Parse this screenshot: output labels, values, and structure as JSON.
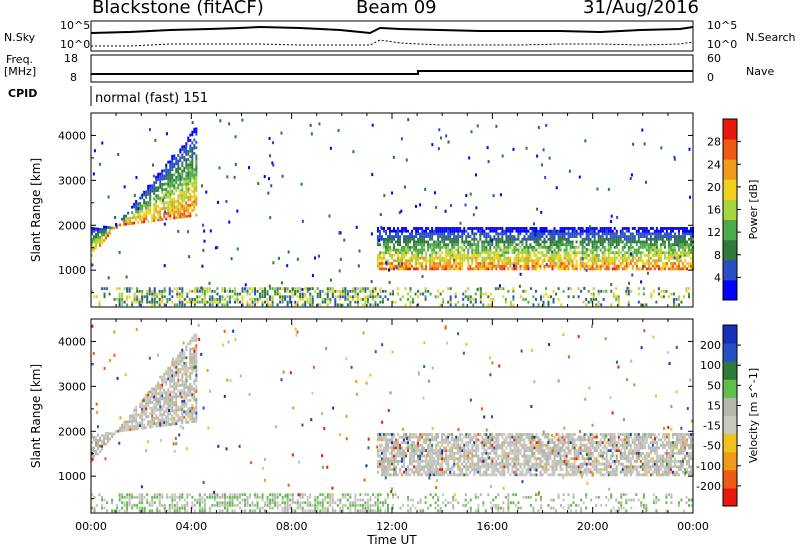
{
  "header": {
    "title": "Blackstone (fitACF)",
    "beam": "Beam 09",
    "date": "31/Aug/2016"
  },
  "top_panels": {
    "nsky_label": "N.Sky",
    "nsearch_label": "N.Search",
    "nsky_ticks": [
      "10^5",
      "10^0"
    ],
    "nsearch_ticks": [
      "10^5",
      "10^0"
    ],
    "freq_label": "Freq.",
    "freq_unit": "[MHz]",
    "freq_ticks": [
      "18",
      "8"
    ],
    "nave_label": "Nave",
    "nave_ticks": [
      "60",
      "0"
    ],
    "cpid_label": "CPID",
    "cpid_text": "normal (fast) 151"
  },
  "colors": {
    "power_scale": [
      "#0000ff",
      "#2a4fc4",
      "#2f7a3a",
      "#4ea84e",
      "#a6d63f",
      "#f2d11c",
      "#f09a1b",
      "#f05a12",
      "#e81810"
    ],
    "velocity_scale": [
      "#e81810",
      "#f05a12",
      "#f09a1b",
      "#f2c21c",
      "#c8c8c0",
      "#b6b6ae",
      "#5fbf4a",
      "#2f7a3a",
      "#2a4fc4",
      "#1a2fb8"
    ]
  },
  "chart_data": [
    {
      "type": "heatmap",
      "ylabel": "Slant Range [km]",
      "yticks": [
        "4000",
        "3000",
        "2000",
        "1000"
      ],
      "ylim": [
        180,
        4500
      ],
      "colorbar": {
        "label": "Power [dB]",
        "ticks": [
          "28",
          "24",
          "20",
          "16",
          "12",
          "8",
          "4"
        ],
        "range": [
          0,
          32
        ]
      }
    },
    {
      "type": "heatmap",
      "ylabel": "Slant Range [km]",
      "yticks": [
        "4000",
        "3000",
        "2000",
        "1000"
      ],
      "ylim": [
        180,
        4500
      ],
      "xlabel": "Time UT",
      "xticks": [
        "00:00",
        "04:00",
        "08:00",
        "12:00",
        "16:00",
        "20:00",
        "00:00"
      ],
      "colorbar": {
        "label": "Velocity [m s^-1]",
        "ticks": [
          "200",
          "100",
          "50",
          "15",
          "-15",
          "-50",
          "-100",
          "-200"
        ],
        "range": [
          -250,
          250
        ]
      },
      "bands": [
        {
          "name": "",
          "time_h": [
            0.0,
            4.2
          ],
          "range_km_start": [
            1900,
            1300
          ],
          "range_km_end": [
            2200,
            4200
          ]
        },
        {
          "name": "",
          "time_h": [
            11.4,
            24.0
          ],
          "range_km": [
            1000,
            1900
          ]
        }
      ]
    }
  ]
}
